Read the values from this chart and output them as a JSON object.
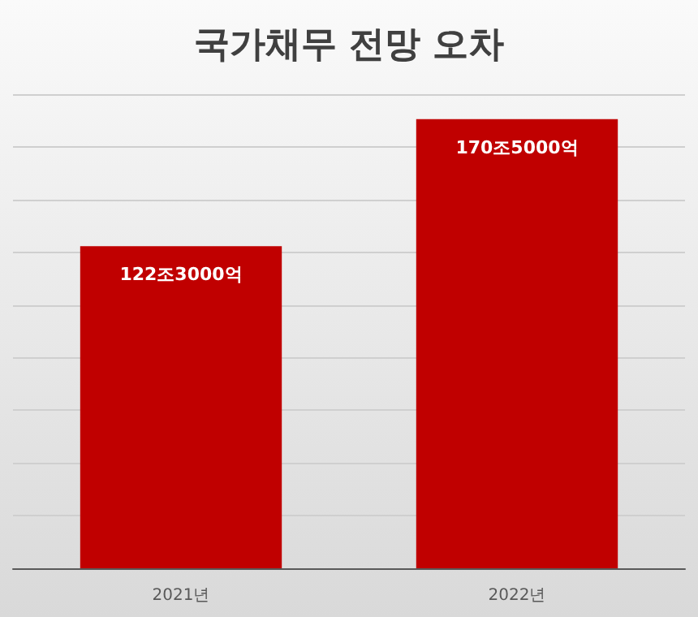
{
  "chart_data": {
    "type": "bar",
    "title": "국가채무 전망 오차",
    "categories": [
      "2021년",
      "2022년"
    ],
    "values": [
      122.3,
      170.5
    ],
    "value_labels": [
      "122조3000억",
      "170조5000억"
    ],
    "color": "#c00000",
    "ylim": [
      0,
      180
    ],
    "yticks": [
      {
        "value": 0,
        "label": null
      },
      {
        "value": 20,
        "label": null
      },
      {
        "value": 40,
        "label": null
      },
      {
        "value": 60,
        "label": null
      },
      {
        "value": 80,
        "label": null
      },
      {
        "value": 100,
        "label": null
      },
      {
        "value": 120,
        "label": null
      },
      {
        "value": 140,
        "label": null
      },
      {
        "value": 160,
        "label": null
      },
      {
        "value": 180,
        "label": null
      }
    ],
    "grid": "y",
    "tick_labels": "x"
  }
}
